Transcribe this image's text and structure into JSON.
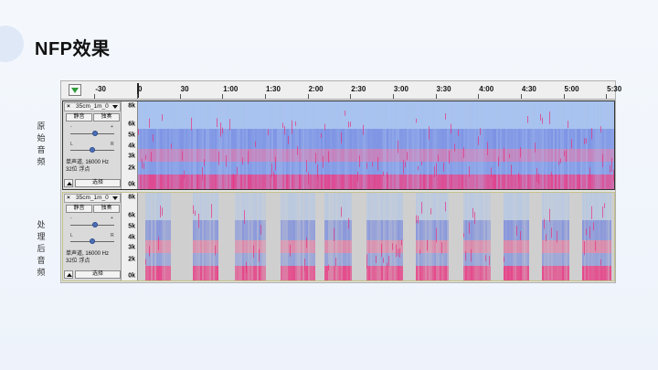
{
  "slide": {
    "title": "NFP效果",
    "label_original": [
      "原",
      "始",
      "音",
      "频"
    ],
    "label_processed": [
      "处",
      "理",
      "后",
      "音",
      "频"
    ]
  },
  "timeline": {
    "ticks": [
      {
        "label": "-30",
        "sec": -30
      },
      {
        "label": "0",
        "sec": 0
      },
      {
        "label": "30",
        "sec": 30
      },
      {
        "label": "1:00",
        "sec": 60
      },
      {
        "label": "1:30",
        "sec": 90
      },
      {
        "label": "2:00",
        "sec": 120
      },
      {
        "label": "2:30",
        "sec": 150
      },
      {
        "label": "3:00",
        "sec": 180
      },
      {
        "label": "3:30",
        "sec": 210
      },
      {
        "label": "4:00",
        "sec": 240
      },
      {
        "label": "4:30",
        "sec": 270
      },
      {
        "label": "5:00",
        "sec": 300
      },
      {
        "label": "5:30",
        "sec": 330
      }
    ]
  },
  "freq_ticks": [
    "8k",
    "6k",
    "5k",
    "4k",
    "3k",
    "2k",
    "0k"
  ],
  "tracks": [
    {
      "close": "×",
      "name": "35cm_1m_0",
      "mute": "静音",
      "solo": "独奏",
      "gain_minus": "-",
      "gain_plus": "+",
      "pan_left": "L",
      "pan_right": "R",
      "info_line1": "单声道, 16000 Hz",
      "info_line2": "32位 浮点",
      "select": "选择"
    },
    {
      "close": "×",
      "name": "35cm_1m_0",
      "mute": "静音",
      "solo": "独奏",
      "gain_minus": "-",
      "gain_plus": "+",
      "pan_left": "L",
      "pan_right": "R",
      "info_line1": "单声道, 16000 Hz",
      "info_line2": "32位 浮点",
      "select": "选择"
    }
  ],
  "processed_segments_sec": [
    [
      5,
      22
    ],
    [
      38,
      56
    ],
    [
      68,
      90
    ],
    [
      100,
      124
    ],
    [
      130,
      150
    ],
    [
      160,
      186
    ],
    [
      195,
      218
    ],
    [
      228,
      248
    ],
    [
      256,
      275
    ],
    [
      283,
      303
    ],
    [
      312,
      333
    ]
  ],
  "colors": {
    "spec_low": "#e8307e",
    "spec_mid": "#6a7fe0",
    "spec_high": "#a8c4f0",
    "accent": "#2e9b3b"
  }
}
